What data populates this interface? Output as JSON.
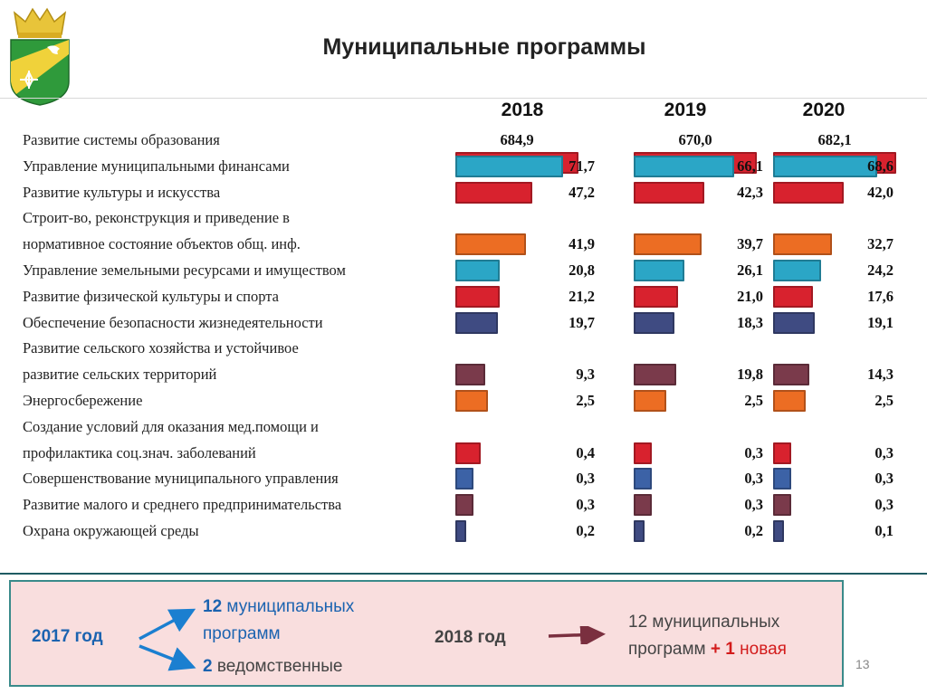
{
  "header": {
    "title": "Муниципальные программы"
  },
  "colors": {
    "red": "#d8222e",
    "teal": "#2ba6c6",
    "orange": "#ec6d23",
    "navy": "#3f4b82",
    "maroon": "#7a3a4b",
    "blue": "#3c62a6"
  },
  "chart_data": {
    "type": "bar",
    "orientation": "horizontal",
    "years": [
      "2018",
      "2019",
      "2020"
    ],
    "categories": [
      {
        "lines": [
          "Развитие системы образования"
        ],
        "color": "red",
        "values": [
          "684,9",
          "670,0",
          "682,1"
        ]
      },
      {
        "lines": [
          "Управление муниципальными финансами"
        ],
        "color": "teal",
        "values": [
          "71,7",
          "66,1",
          "68,6"
        ]
      },
      {
        "lines": [
          "Развитие культуры и искусства"
        ],
        "color": "red",
        "values": [
          "47,2",
          "42,3",
          "42,0"
        ]
      },
      {
        "lines": [
          "Строит-во, реконструкция и приведение в",
          "нормативное состояние объектов общ. инф."
        ],
        "color": "orange",
        "values": [
          "41,9",
          "39,7",
          "32,7"
        ]
      },
      {
        "lines": [
          "Управление земельными ресурсами и имуществом"
        ],
        "color": "teal",
        "values": [
          "20,8",
          "26,1",
          "24,2"
        ]
      },
      {
        "lines": [
          "Развитие физической культуры и спорта"
        ],
        "color": "red",
        "values": [
          "21,2",
          "21,0",
          "17,6"
        ]
      },
      {
        "lines": [
          "Обеспечение безопасности жизнедеятельности"
        ],
        "color": "navy",
        "values": [
          "19,7",
          "18,3",
          "19,1"
        ]
      },
      {
        "lines": [
          "Развитие сельского хозяйства и устойчивое",
          "развитие сельских территорий"
        ],
        "color": "maroon",
        "values": [
          "9,3",
          "19,8",
          "14,3"
        ]
      },
      {
        "lines": [
          "Энергосбережение"
        ],
        "color": "orange",
        "values": [
          "2,5",
          "2,5",
          "2,5"
        ]
      },
      {
        "lines": [
          "Создание условий для оказания мед.помощи и",
          "профилактика соц.знач. заболеваний"
        ],
        "color": "red",
        "values": [
          "0,4",
          "0,3",
          "0,3"
        ]
      },
      {
        "lines": [
          "Совершенствование муниципального управления"
        ],
        "color": "blue",
        "values": [
          "0,3",
          "0,3",
          "0,3"
        ]
      },
      {
        "lines": [
          "Развитие малого и среднего предпринимательства"
        ],
        "color": "maroon",
        "values": [
          "0,3",
          "0,3",
          "0,3"
        ]
      },
      {
        "lines": [
          "Охрана окружающей среды"
        ],
        "color": "navy",
        "values": [
          "0,2",
          "0,2",
          "0,1"
        ]
      }
    ],
    "unit_note": ""
  },
  "summary": {
    "year2017": "2017 год",
    "programs_num": "12",
    "programs_word1": "муниципальных",
    "programs_word2": "программ",
    "dept_num": "2",
    "dept_word": "ведомственные",
    "year2018": "2018 год",
    "p2018_line1": "12 муниципальных",
    "p2018_line2": "программ",
    "p2018_plus": "+ 1",
    "p2018_new": "новая"
  },
  "footer": {
    "page_number": "13"
  }
}
